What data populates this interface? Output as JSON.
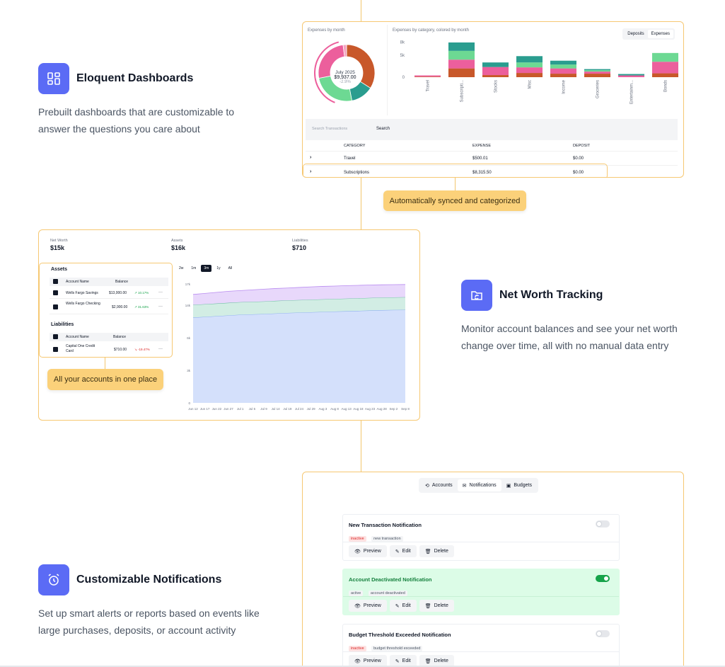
{
  "features": [
    {
      "title": "Eloquent Dashboards",
      "desc": "Prebuilt dashboards that are customizable to answer the questions you care about",
      "icon": "dashboard-icon"
    },
    {
      "title": "Net Worth Tracking",
      "desc": "Monitor account balances and see your net worth change over time, all with no manual data entry",
      "icon": "folder-sync-icon"
    },
    {
      "title": "Customizable Notifications",
      "desc": "Set up smart alerts or reports based on events like large purchases, deposits, or account activity",
      "icon": "alarm-clock-icon"
    }
  ],
  "callouts": {
    "synced": "Automatically synced and categorized",
    "accounts": "All your accounts in one place"
  },
  "dashboard": {
    "donut_title": "Expenses by month",
    "donut_month": "July 2025",
    "donut_amount": "$9,937.00",
    "donut_change": "-2.9%",
    "bar_title": "Expenses by category, colored by month",
    "toggle_deposits": "Deposits",
    "toggle_expenses": "Expenses",
    "search_placeholder": "Search Transactions",
    "search_button": "Search",
    "table_headers": {
      "category": "CATEGORY",
      "expense": "EXPENSE",
      "deposit": "DEPOSIT"
    },
    "rows": [
      {
        "category": "Travel",
        "expense": "$500.01",
        "deposit": "$0.00"
      },
      {
        "category": "Subscriptions",
        "expense": "$8,315.50",
        "deposit": "$0.00"
      }
    ]
  },
  "chart_data": [
    {
      "type": "pie",
      "title": "Expenses by month",
      "slices": [
        {
          "label": "",
          "value": 0.34,
          "color": "#c8582a"
        },
        {
          "label": "",
          "value": 0.13,
          "color": "#2a9d8f"
        },
        {
          "label": "",
          "value": 0.25,
          "color": "#6dd993"
        },
        {
          "label": "",
          "value": 0.26,
          "color": "#ec5f9c"
        },
        {
          "label": "",
          "value": 0.02,
          "color": "#f4a3c0"
        }
      ]
    },
    {
      "type": "bar",
      "title": "Expenses by category, colored by month",
      "categories": [
        "Travel",
        "Subscripti...",
        "Stocks",
        "Misc",
        "Income",
        "Groceries",
        "Entertainm...",
        "Bonds"
      ],
      "yticks": [
        "0",
        "5k",
        "8k"
      ],
      "ylim": [
        0,
        10500
      ],
      "series": [
        {
          "values": [
            150,
            2500,
            600,
            1200,
            1000,
            1000,
            0,
            1100
          ],
          "color": "#c8582a"
        },
        {
          "values": [
            350,
            2500,
            2300,
            1600,
            1500,
            600,
            500,
            3300
          ],
          "color": "#ec5f9c"
        },
        {
          "values": [
            0,
            2500,
            0,
            1400,
            1100,
            400,
            0,
            2500
          ],
          "color": "#6dd993"
        },
        {
          "values": [
            0,
            2400,
            1300,
            1800,
            1100,
            300,
            400,
            0
          ],
          "color": "#2a9d8f"
        }
      ]
    },
    {
      "type": "area",
      "title": "",
      "x": [
        "Jun 12",
        "Jun 17",
        "Jun 22",
        "Jun 27",
        "Jul 1",
        "Jul 5",
        "Jul 9",
        "Jul 14",
        "Jul 19",
        "Jul 24",
        "Jul 29",
        "Aug 3",
        "Aug 8",
        "Aug 13",
        "Aug 18",
        "Aug 23",
        "Aug 28",
        "Sep 2",
        "Sep 8"
      ],
      "yticks": [
        "0",
        "3k",
        "6k",
        "14k",
        "17k"
      ],
      "ylim": [
        0,
        17000
      ],
      "series": [
        {
          "values": [
            12200,
            12300,
            12400,
            12500,
            12600,
            12650,
            12700,
            12780,
            12850,
            12900,
            12950,
            13000,
            13050,
            13100,
            13150,
            13200,
            13250,
            13280,
            13300
          ],
          "color": "#d4e0fb"
        },
        {
          "values": [
            14000,
            14100,
            14200,
            14300,
            14400,
            14450,
            14500,
            14580,
            14650,
            14700,
            14750,
            14800,
            14850,
            14900,
            14950,
            15000,
            15050,
            15080,
            15100
          ],
          "color": "#d2ede4"
        },
        {
          "values": [
            15500,
            15650,
            15800,
            15950,
            16050,
            16150,
            16250,
            16350,
            16420,
            16500,
            16580,
            16650,
            16700,
            16760,
            16800,
            16850,
            16880,
            16900,
            16920
          ],
          "color": "#e8d8fb"
        }
      ]
    }
  ],
  "networth": {
    "net_worth_label": "Net Worth",
    "net_worth_value": "$15k",
    "assets_label": "Assets",
    "assets_value": "$16k",
    "liabilities_label": "Liabilities",
    "liabilities_value": "$710",
    "assets_heading": "Assets",
    "liabilities_heading": "Liabilities",
    "col_name": "Account Name",
    "col_balance": "Balance",
    "assets": [
      {
        "name": "Wells Fargo Savings",
        "balance": "$13,000.00",
        "change": "↗ 10.17%"
      },
      {
        "name": "Wells Fargo Checking",
        "balance": "$2,900.00",
        "change": "↗ 31.63%"
      }
    ],
    "liabilities": [
      {
        "name": "Capital One Credit Card",
        "balance": "$710.00",
        "change": "↘ -19.47%"
      }
    ],
    "ranges": [
      "2w",
      "1m",
      "3m",
      "1y",
      "All"
    ],
    "active_range": "3m",
    "more": "···"
  },
  "notifications": {
    "tabs": [
      "Accounts",
      "Notifications",
      "Budgets"
    ],
    "active_tab": "Notifications",
    "items": [
      {
        "title": "New Transaction Notification",
        "status": "inactive",
        "event": "new transaction",
        "enabled": false
      },
      {
        "title": "Account Deactivated Notification",
        "status": "active",
        "event": "account deactivated",
        "enabled": true
      },
      {
        "title": "Budget Threshold Exceeded Notification",
        "status": "inactive",
        "event": "budget threshold exceeded",
        "enabled": false
      }
    ],
    "actions": {
      "preview": "Preview",
      "edit": "Edit",
      "delete": "Delete"
    }
  }
}
